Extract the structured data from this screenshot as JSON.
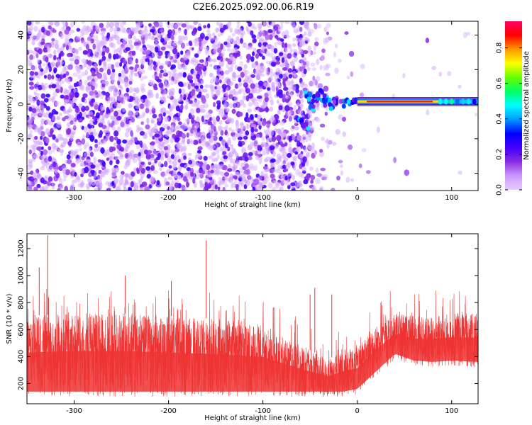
{
  "title": "C2E6.2025.092.00.06.R19",
  "colors": {
    "snr": "#ee3333",
    "colormap": [
      "#e6ccff",
      "#cc99ff",
      "#8a2be2",
      "#4400ff",
      "#0000ff",
      "#0099ff",
      "#00ffff",
      "#00ff66",
      "#66ff00",
      "#ffff00",
      "#ff9900",
      "#ff0000",
      "#ff0066"
    ]
  },
  "chart_data": [
    {
      "type": "heatmap",
      "name": "spectrogram",
      "xlabel": "Height of straight line (km)",
      "ylabel": "Frequency (Hz)",
      "xlim": [
        -350,
        128
      ],
      "ylim": [
        -50,
        48
      ],
      "xticks": [
        -300,
        -200,
        -100,
        0,
        100
      ],
      "yticks": [
        -40,
        -20,
        0,
        20,
        40
      ],
      "colorbar": {
        "label": "Normalized spectral amplitude",
        "range": [
          0,
          0.95
        ],
        "ticks": [
          0.0,
          0.2,
          0.4,
          0.6,
          0.8
        ]
      },
      "description_values": {
        "noise_region_x": [
          -350,
          -40
        ],
        "signal_band_x": [
          0,
          128
        ],
        "signal_band_frequency": 1.5,
        "signal_peak_amplitude": 0.95,
        "noise_amplitude": 0.1
      }
    },
    {
      "type": "line",
      "name": "snr",
      "xlabel": "Height of straight line (km)",
      "ylabel": "SNR (10 * v/v)",
      "xlim": [
        -350,
        128
      ],
      "ylim": [
        50,
        1310
      ],
      "xticks": [
        -300,
        -200,
        -100,
        0,
        100
      ],
      "yticks": [
        200,
        400,
        600,
        800,
        1000,
        1200
      ],
      "trend": {
        "x": [
          -350,
          -300,
          -250,
          -200,
          -150,
          -100,
          -60,
          -30,
          -15,
          0,
          20,
          40,
          60,
          80,
          100,
          128
        ],
        "low": [
          100,
          100,
          100,
          100,
          100,
          100,
          100,
          100,
          100,
          120,
          250,
          380,
          330,
          320,
          330,
          320
        ],
        "high": [
          700,
          720,
          720,
          700,
          680,
          640,
          480,
          380,
          450,
          470,
          620,
          720,
          700,
          700,
          720,
          720
        ]
      },
      "spikes": [
        {
          "x": -328,
          "y": 1300
        },
        {
          "x": -337,
          "y": 1060
        },
        {
          "x": -246,
          "y": 1000
        },
        {
          "x": -160,
          "y": 1260
        },
        {
          "x": -197,
          "y": 960
        },
        {
          "x": -45,
          "y": 910
        },
        {
          "x": -27,
          "y": 860
        },
        {
          "x": -50,
          "y": 860
        }
      ]
    }
  ]
}
